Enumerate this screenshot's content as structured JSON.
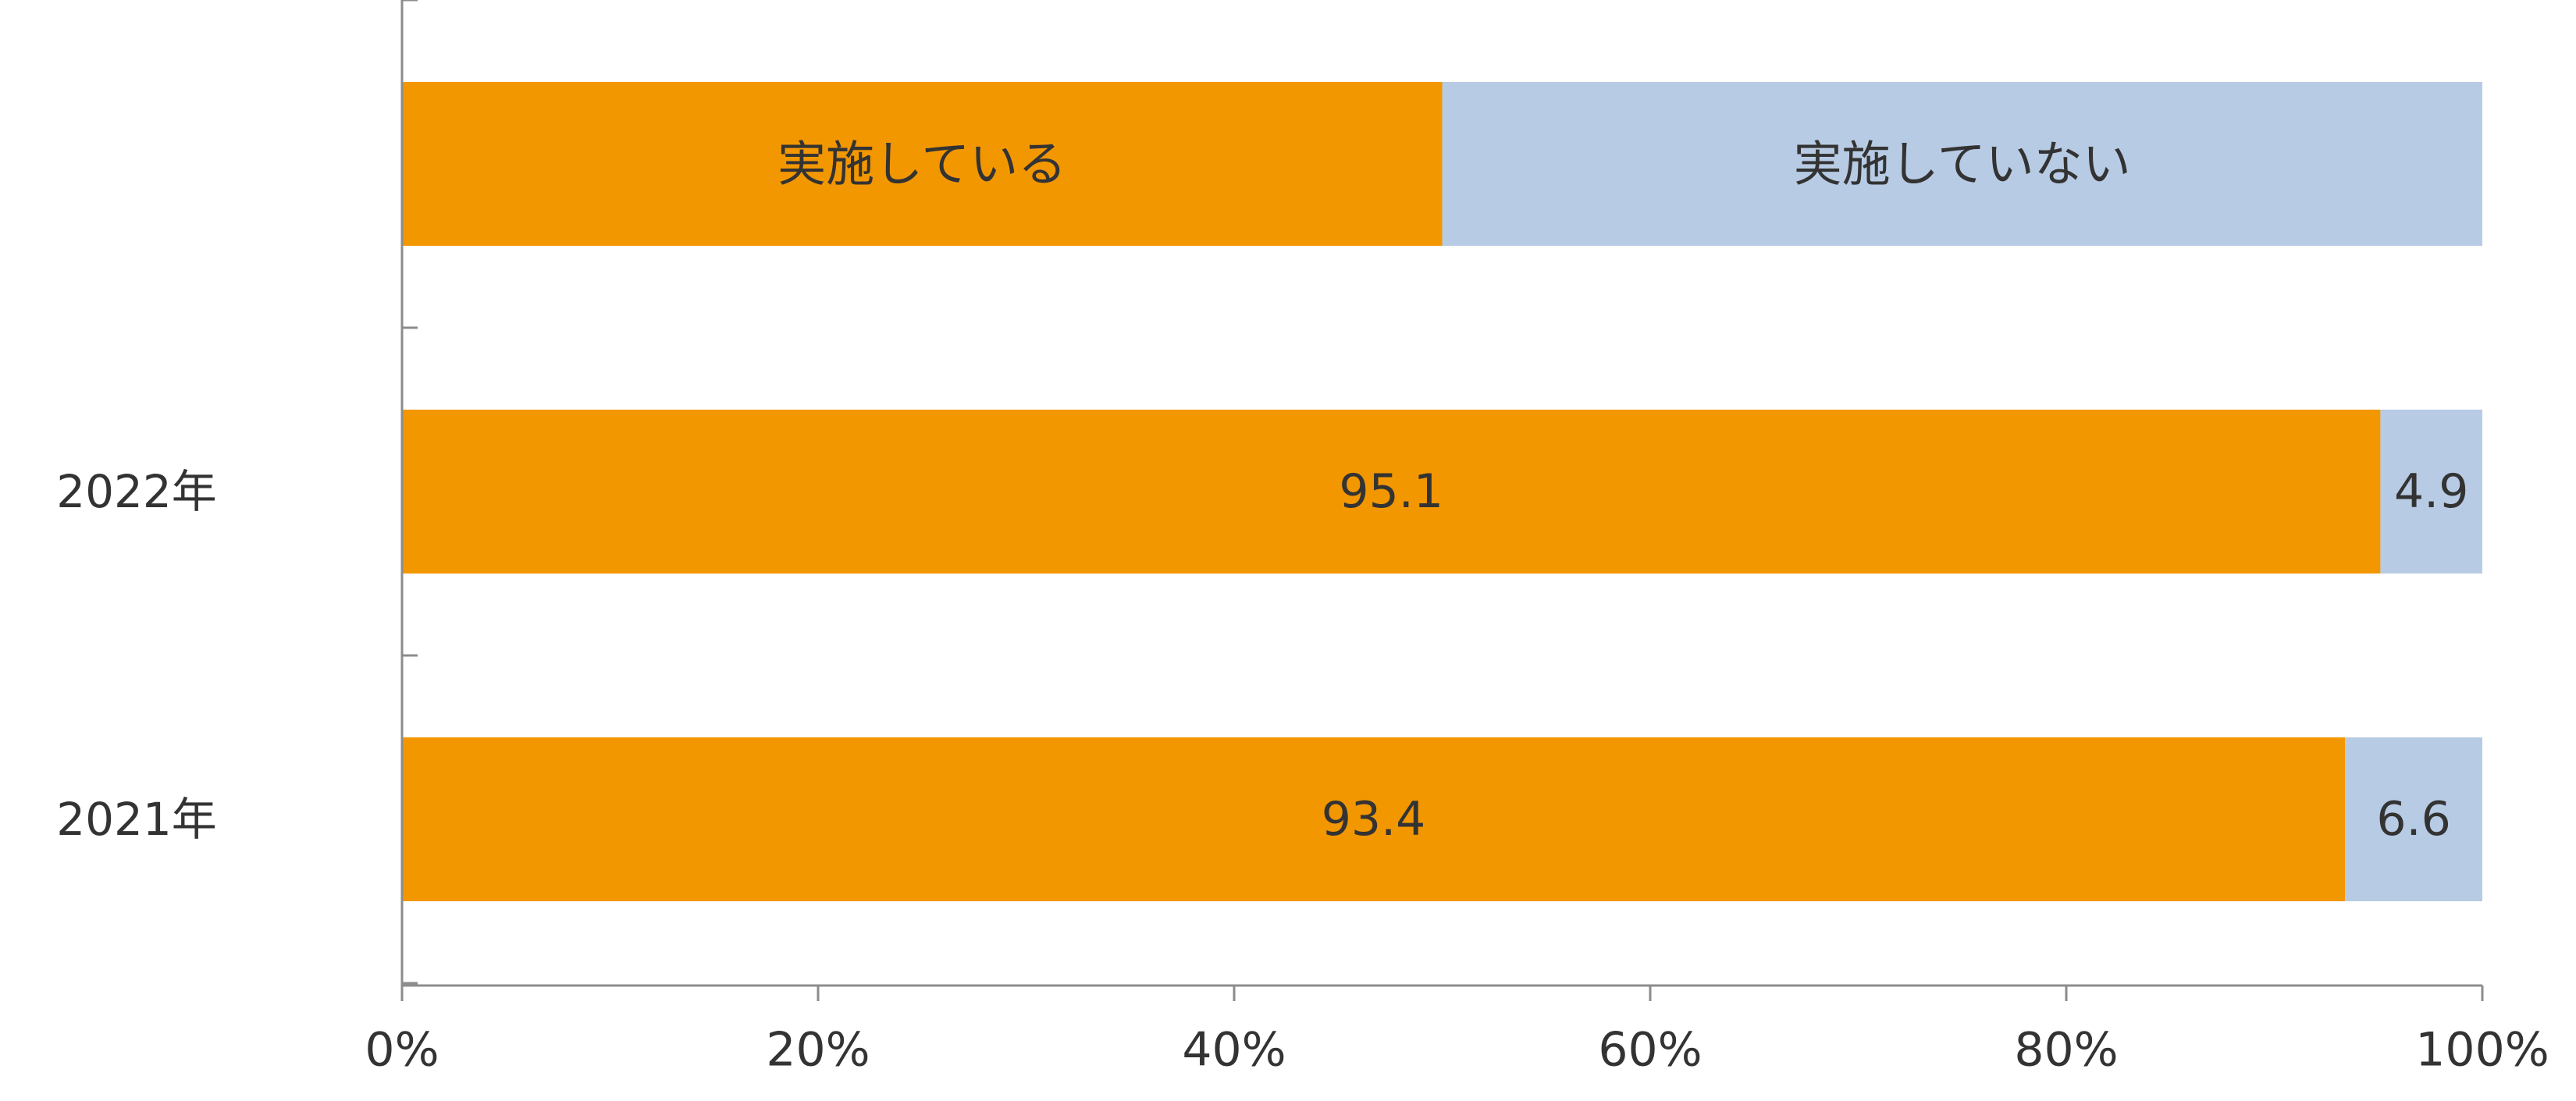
{
  "chart_data": {
    "type": "bar",
    "orientation": "horizontal",
    "stacked": true,
    "rows": [
      {
        "label": "",
        "values": [
          50,
          50
        ],
        "labels": [
          "実施している",
          "実施していない"
        ]
      },
      {
        "label": "2022年",
        "values": [
          95.1,
          4.9
        ],
        "labels": [
          "95.1",
          "4.9"
        ]
      },
      {
        "label": "2021年",
        "values": [
          93.4,
          6.6
        ],
        "labels": [
          "93.4",
          "6.6"
        ]
      }
    ],
    "series": [
      {
        "name": "実施している",
        "color": "#f39700"
      },
      {
        "name": "実施していない",
        "color": "#b8cbe4"
      }
    ],
    "xlim": [
      0,
      100
    ],
    "xticks": [
      0,
      20,
      40,
      60,
      80,
      100
    ],
    "xtick_labels": [
      "0%",
      "20%",
      "40%",
      "60%",
      "80%",
      "100%"
    ],
    "grid": false
  }
}
